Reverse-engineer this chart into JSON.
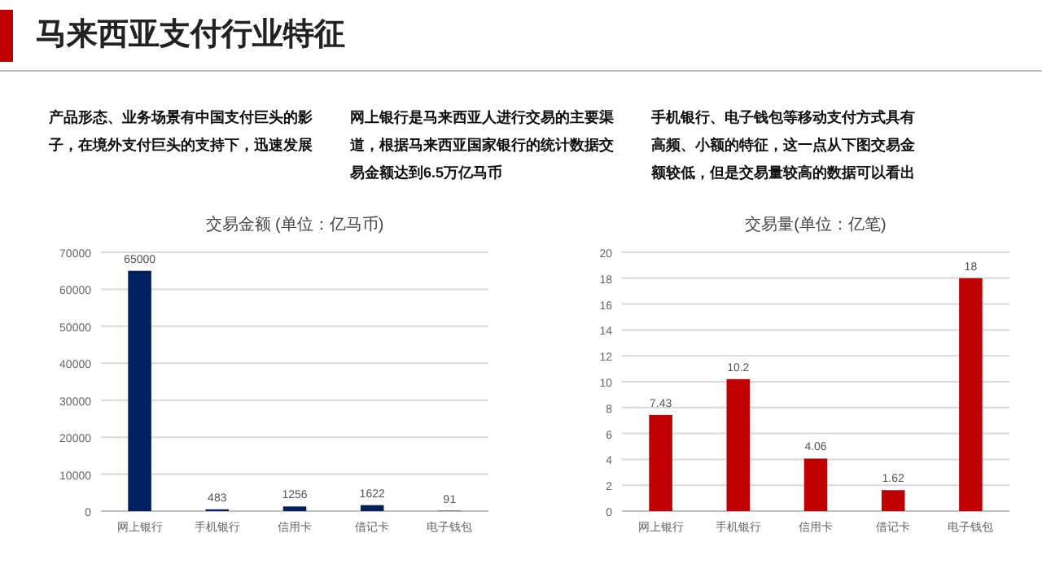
{
  "chart_data": [
    {
      "type": "other",
      "title": "马来西亚支付行业特征",
      "annotations": [
        "产品形态、业务场景有中国支付巨头的影子，在境外支付巨头的支持下，迅速发展",
        "网上银行是马来西亚人进行交易的主要渠道，根据马来西亚国家银行的统计数据交易金额达到6.5万亿马币",
        "手机银行、电子钱包等移动支付方式具有高频、小额的特征，这一点从下图交易金额较低，但是交易量较高的数据可以看出"
      ]
    },
    {
      "type": "bar",
      "title": "交易金额 (单位：亿马币)",
      "categories": [
        "网上银行",
        "手机银行",
        "信用卡",
        "借记卡",
        "电子钱包"
      ],
      "values": [
        65000,
        483,
        1256,
        1622,
        91
      ],
      "color": "#002060",
      "ylim": [
        0,
        70000
      ],
      "yticks": [
        0,
        10000,
        20000,
        30000,
        40000,
        50000,
        60000,
        70000
      ],
      "grid": "y",
      "data_labels": true
    },
    {
      "type": "bar",
      "title": "交易量(单位：亿笔)",
      "categories": [
        "网上银行",
        "手机银行",
        "信用卡",
        "借记卡",
        "电子钱包"
      ],
      "values": [
        7.43,
        10.2,
        4.06,
        1.62,
        18
      ],
      "color": "#c00000",
      "ylim": [
        0,
        20
      ],
      "yticks": [
        0,
        2,
        4,
        6,
        8,
        10,
        12,
        14,
        16,
        18,
        20
      ],
      "grid": "y",
      "data_labels": true
    }
  ]
}
